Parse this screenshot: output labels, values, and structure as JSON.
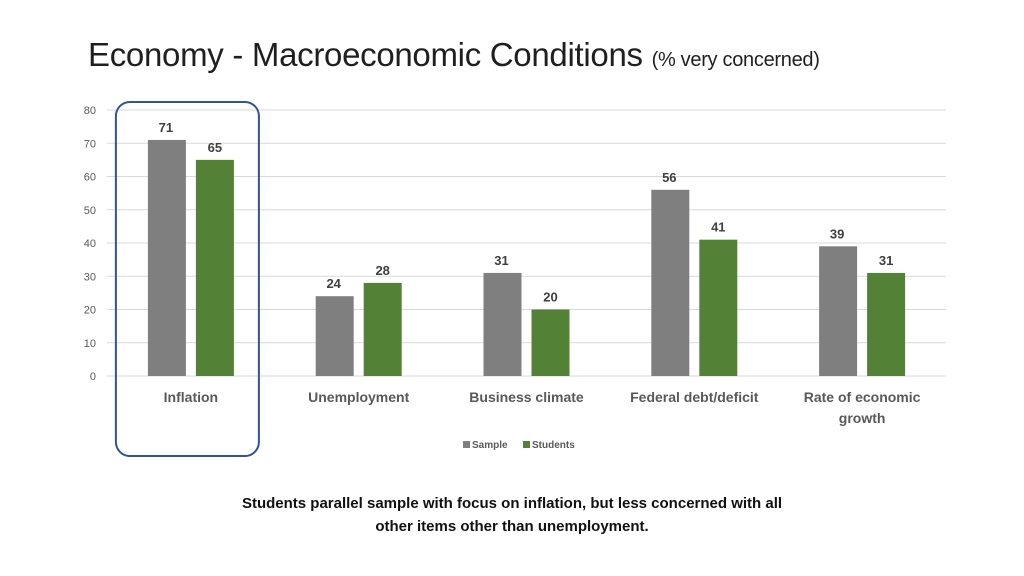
{
  "slide": {
    "title_main": "Economy -  Macroeconomic Conditions",
    "title_sub": "(% very concerned)",
    "caption_line1": "Students parallel sample with focus on inflation, but less concerned with all",
    "caption_line2": "other items other than unemployment."
  },
  "colors": {
    "sample": "#7f7f7f",
    "students": "#538135",
    "highlight_border": "#2f5597",
    "grid": "#d9d9d9",
    "text": "#595959"
  },
  "chart_data": {
    "type": "bar",
    "categories": [
      [
        "Inflation"
      ],
      [
        "Unemployment"
      ],
      [
        "Business climate"
      ],
      [
        "Federal debt/deficit"
      ],
      [
        "Rate of economic",
        "growth"
      ]
    ],
    "series": [
      {
        "name": "Sample",
        "values": [
          71,
          24,
          31,
          56,
          39
        ]
      },
      {
        "name": "Students",
        "values": [
          65,
          28,
          20,
          41,
          31
        ]
      }
    ],
    "ylim": [
      0,
      80
    ],
    "yticks": [
      0,
      10,
      20,
      30,
      40,
      50,
      60,
      70,
      80
    ],
    "grid": true,
    "legend": "bottom-center",
    "highlighted_category": 0
  }
}
